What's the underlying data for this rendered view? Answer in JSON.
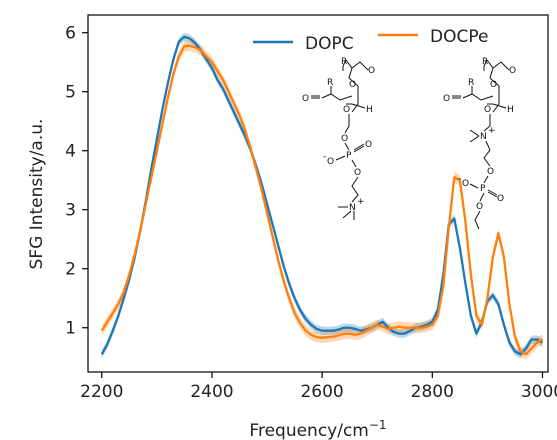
{
  "chart_data": {
    "type": "line",
    "xlabel": "Frequency/cm",
    "xlabel_sup": "−1",
    "ylabel": "SFG Intensity/a.u.",
    "xlim": [
      2175,
      3010
    ],
    "ylim": [
      0.25,
      6.3
    ],
    "xticks": [
      2200,
      2400,
      2600,
      2800,
      3000
    ],
    "yticks": [
      1,
      2,
      3,
      4,
      5,
      6
    ],
    "legend_placement": "top-right",
    "grid": false,
    "series": [
      {
        "name": "DOPC",
        "color": "#1f77b4",
        "x": [
          2200,
          2210,
          2220,
          2230,
          2240,
          2250,
          2260,
          2270,
          2280,
          2290,
          2300,
          2310,
          2320,
          2330,
          2340,
          2350,
          2360,
          2370,
          2380,
          2390,
          2400,
          2410,
          2420,
          2430,
          2440,
          2450,
          2460,
          2470,
          2480,
          2490,
          2500,
          2510,
          2520,
          2530,
          2540,
          2550,
          2560,
          2570,
          2580,
          2590,
          2600,
          2610,
          2620,
          2630,
          2640,
          2650,
          2660,
          2670,
          2680,
          2690,
          2700,
          2710,
          2720,
          2730,
          2740,
          2750,
          2760,
          2770,
          2780,
          2790,
          2800,
          2810,
          2820,
          2830,
          2840,
          2850,
          2860,
          2870,
          2880,
          2890,
          2900,
          2910,
          2920,
          2930,
          2940,
          2950,
          2960,
          2970,
          2980,
          2990,
          3000
        ],
        "y": [
          0.55,
          0.72,
          0.95,
          1.2,
          1.5,
          1.82,
          2.2,
          2.65,
          3.15,
          3.7,
          4.2,
          4.7,
          5.15,
          5.55,
          5.85,
          5.93,
          5.9,
          5.82,
          5.7,
          5.55,
          5.4,
          5.2,
          5.05,
          4.85,
          4.65,
          4.45,
          4.25,
          4.02,
          3.75,
          3.45,
          3.1,
          2.75,
          2.4,
          2.05,
          1.75,
          1.5,
          1.3,
          1.15,
          1.05,
          0.98,
          0.95,
          0.95,
          0.95,
          0.97,
          1.0,
          1.0,
          0.98,
          0.95,
          0.97,
          1.0,
          1.05,
          1.1,
          1.0,
          0.93,
          0.9,
          0.9,
          0.95,
          1.0,
          1.02,
          1.05,
          1.1,
          1.3,
          1.9,
          2.75,
          2.85,
          2.35,
          1.75,
          1.2,
          0.9,
          1.1,
          1.45,
          1.55,
          1.4,
          1.05,
          0.75,
          0.6,
          0.55,
          0.65,
          0.8,
          0.8,
          0.75
        ]
      },
      {
        "name": "DOCPe",
        "color": "#ff7f0e",
        "x": [
          2200,
          2210,
          2220,
          2230,
          2240,
          2250,
          2260,
          2270,
          2280,
          2290,
          2300,
          2310,
          2320,
          2330,
          2340,
          2350,
          2360,
          2370,
          2380,
          2390,
          2400,
          2410,
          2420,
          2430,
          2440,
          2450,
          2460,
          2470,
          2480,
          2490,
          2500,
          2510,
          2520,
          2530,
          2540,
          2550,
          2560,
          2570,
          2580,
          2590,
          2600,
          2610,
          2620,
          2630,
          2640,
          2650,
          2660,
          2670,
          2680,
          2690,
          2700,
          2710,
          2720,
          2730,
          2740,
          2750,
          2760,
          2770,
          2780,
          2790,
          2800,
          2810,
          2820,
          2830,
          2840,
          2850,
          2860,
          2870,
          2880,
          2890,
          2900,
          2910,
          2920,
          2930,
          2940,
          2950,
          2960,
          2970,
          2980,
          2990,
          3000
        ],
        "y": [
          0.95,
          1.1,
          1.25,
          1.4,
          1.6,
          1.9,
          2.25,
          2.65,
          3.1,
          3.55,
          4.0,
          4.45,
          4.9,
          5.3,
          5.6,
          5.77,
          5.78,
          5.75,
          5.7,
          5.6,
          5.5,
          5.35,
          5.2,
          5.0,
          4.8,
          4.6,
          4.35,
          4.05,
          3.7,
          3.35,
          2.95,
          2.55,
          2.15,
          1.8,
          1.5,
          1.25,
          1.08,
          0.95,
          0.88,
          0.84,
          0.83,
          0.84,
          0.85,
          0.87,
          0.9,
          0.9,
          0.88,
          0.9,
          0.95,
          1.0,
          1.05,
          1.02,
          0.98,
          1.0,
          1.02,
          1.0,
          1.0,
          1.0,
          1.0,
          1.02,
          1.05,
          1.2,
          1.7,
          2.7,
          3.55,
          3.5,
          2.8,
          1.9,
          1.2,
          1.05,
          1.5,
          2.2,
          2.6,
          2.2,
          1.4,
          0.85,
          0.6,
          0.55,
          0.65,
          0.75,
          0.8
        ]
      }
    ]
  },
  "structures": {
    "dopc_labels": {
      "r": "R",
      "o_carbonyl_top": "O",
      "o_carbonyl_left": "O",
      "o_ester_top": "O",
      "o_ester_mid": "O",
      "h": "H",
      "o_phos_link": "O",
      "p": "P",
      "o_double": "O",
      "o_minus": "O",
      "o_phos_bottom": "O",
      "n": "N"
    },
    "docpe_labels": {
      "r": "R",
      "o_carbonyl_top": "O",
      "o_carbonyl_left": "O",
      "o_ester_top": "O",
      "o_ester_mid": "O",
      "h": "H",
      "n": "N",
      "o_phos_link": "O",
      "o_minus": "O",
      "p": "P",
      "o_double": "O",
      "o_phos_bottom": "O"
    }
  }
}
